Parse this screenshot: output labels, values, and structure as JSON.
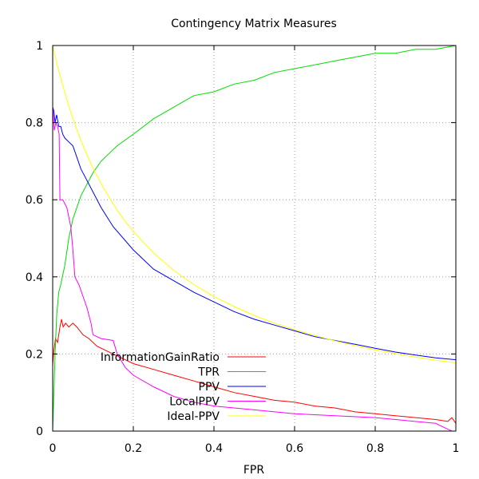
{
  "chart_data": {
    "type": "line",
    "title": "Contingency Matrix Measures",
    "xlabel": "FPR",
    "ylabel": "",
    "xlim": [
      0,
      1
    ],
    "ylim": [
      0,
      1
    ],
    "xticks": [
      0,
      0.2,
      0.4,
      0.6,
      0.8,
      1
    ],
    "xtick_labels": [
      "0",
      "0.2",
      "0.4",
      "0.6",
      "0.8",
      "1"
    ],
    "yticks": [
      0,
      0.2,
      0.4,
      0.6,
      0.8,
      1
    ],
    "ytick_labels": [
      "0",
      "0.2",
      "0.4",
      "0.6",
      "0.8",
      "1"
    ],
    "grid": true,
    "legend_position": "bottom-center",
    "series": [
      {
        "name": "InformationGainRatio",
        "color": "#ff0000",
        "points": [
          [
            0,
            0.17
          ],
          [
            0.003,
            0.21
          ],
          [
            0.007,
            0.24
          ],
          [
            0.012,
            0.23
          ],
          [
            0.018,
            0.27
          ],
          [
            0.022,
            0.29
          ],
          [
            0.026,
            0.27
          ],
          [
            0.032,
            0.28
          ],
          [
            0.04,
            0.27
          ],
          [
            0.05,
            0.28
          ],
          [
            0.06,
            0.27
          ],
          [
            0.075,
            0.25
          ],
          [
            0.09,
            0.24
          ],
          [
            0.11,
            0.22
          ],
          [
            0.13,
            0.21
          ],
          [
            0.15,
            0.2
          ],
          [
            0.17,
            0.19
          ],
          [
            0.2,
            0.175
          ],
          [
            0.25,
            0.16
          ],
          [
            0.3,
            0.145
          ],
          [
            0.35,
            0.13
          ],
          [
            0.4,
            0.115
          ],
          [
            0.45,
            0.1
          ],
          [
            0.5,
            0.09
          ],
          [
            0.55,
            0.08
          ],
          [
            0.6,
            0.075
          ],
          [
            0.65,
            0.065
          ],
          [
            0.7,
            0.06
          ],
          [
            0.75,
            0.05
          ],
          [
            0.8,
            0.045
          ],
          [
            0.85,
            0.04
          ],
          [
            0.9,
            0.035
          ],
          [
            0.95,
            0.03
          ],
          [
            0.98,
            0.025
          ],
          [
            0.99,
            0.035
          ],
          [
            1,
            0.02
          ]
        ]
      },
      {
        "name": "TPR",
        "color": "#00dd00",
        "points": [
          [
            0,
            0
          ],
          [
            0.003,
            0.1
          ],
          [
            0.006,
            0.2
          ],
          [
            0.01,
            0.3
          ],
          [
            0.015,
            0.36
          ],
          [
            0.02,
            0.38
          ],
          [
            0.03,
            0.43
          ],
          [
            0.04,
            0.5
          ],
          [
            0.05,
            0.55
          ],
          [
            0.06,
            0.58
          ],
          [
            0.07,
            0.61
          ],
          [
            0.08,
            0.63
          ],
          [
            0.1,
            0.67
          ],
          [
            0.12,
            0.7
          ],
          [
            0.14,
            0.72
          ],
          [
            0.16,
            0.74
          ],
          [
            0.2,
            0.77
          ],
          [
            0.25,
            0.81
          ],
          [
            0.3,
            0.84
          ],
          [
            0.35,
            0.87
          ],
          [
            0.4,
            0.88
          ],
          [
            0.45,
            0.9
          ],
          [
            0.5,
            0.91
          ],
          [
            0.55,
            0.93
          ],
          [
            0.6,
            0.94
          ],
          [
            0.65,
            0.95
          ],
          [
            0.7,
            0.96
          ],
          [
            0.75,
            0.97
          ],
          [
            0.8,
            0.98
          ],
          [
            0.85,
            0.98
          ],
          [
            0.9,
            0.99
          ],
          [
            0.95,
            0.99
          ],
          [
            1,
            1
          ]
        ]
      },
      {
        "name": "PPV",
        "color": "#0000ff",
        "points": [
          [
            0,
            0.84
          ],
          [
            0.003,
            0.83
          ],
          [
            0.006,
            0.8
          ],
          [
            0.01,
            0.82
          ],
          [
            0.015,
            0.79
          ],
          [
            0.02,
            0.79
          ],
          [
            0.025,
            0.77
          ],
          [
            0.03,
            0.76
          ],
          [
            0.04,
            0.75
          ],
          [
            0.05,
            0.74
          ],
          [
            0.06,
            0.71
          ],
          [
            0.07,
            0.68
          ],
          [
            0.08,
            0.66
          ],
          [
            0.1,
            0.62
          ],
          [
            0.12,
            0.58
          ],
          [
            0.15,
            0.53
          ],
          [
            0.2,
            0.47
          ],
          [
            0.25,
            0.42
          ],
          [
            0.3,
            0.39
          ],
          [
            0.35,
            0.36
          ],
          [
            0.4,
            0.335
          ],
          [
            0.45,
            0.31
          ],
          [
            0.5,
            0.29
          ],
          [
            0.55,
            0.275
          ],
          [
            0.6,
            0.26
          ],
          [
            0.65,
            0.245
          ],
          [
            0.7,
            0.235
          ],
          [
            0.75,
            0.225
          ],
          [
            0.8,
            0.215
          ],
          [
            0.85,
            0.205
          ],
          [
            0.9,
            0.197
          ],
          [
            0.95,
            0.19
          ],
          [
            1,
            0.185
          ]
        ]
      },
      {
        "name": "LocalPPV",
        "color": "#ff00ff",
        "points": [
          [
            0,
            0.84
          ],
          [
            0.004,
            0.78
          ],
          [
            0.008,
            0.8
          ],
          [
            0.012,
            0.79
          ],
          [
            0.016,
            0.77
          ],
          [
            0.018,
            0.6
          ],
          [
            0.025,
            0.6
          ],
          [
            0.035,
            0.58
          ],
          [
            0.045,
            0.53
          ],
          [
            0.05,
            0.47
          ],
          [
            0.055,
            0.4
          ],
          [
            0.065,
            0.38
          ],
          [
            0.075,
            0.35
          ],
          [
            0.085,
            0.32
          ],
          [
            0.095,
            0.28
          ],
          [
            0.1,
            0.25
          ],
          [
            0.12,
            0.24
          ],
          [
            0.15,
            0.235
          ],
          [
            0.16,
            0.2
          ],
          [
            0.18,
            0.165
          ],
          [
            0.2,
            0.145
          ],
          [
            0.25,
            0.115
          ],
          [
            0.3,
            0.09
          ],
          [
            0.35,
            0.075
          ],
          [
            0.4,
            0.065
          ],
          [
            0.5,
            0.055
          ],
          [
            0.6,
            0.045
          ],
          [
            0.7,
            0.04
          ],
          [
            0.8,
            0.035
          ],
          [
            0.9,
            0.025
          ],
          [
            0.95,
            0.02
          ],
          [
            0.97,
            0.01
          ],
          [
            0.98,
            0.005
          ],
          [
            0.99,
            0.0
          ]
        ]
      },
      {
        "name": "Ideal-PPV",
        "color": "#ffff00",
        "points": [
          [
            0,
            1
          ],
          [
            0.01,
            0.956
          ],
          [
            0.02,
            0.915
          ],
          [
            0.03,
            0.878
          ],
          [
            0.04,
            0.843
          ],
          [
            0.05,
            0.811
          ],
          [
            0.06,
            0.782
          ],
          [
            0.07,
            0.754
          ],
          [
            0.08,
            0.729
          ],
          [
            0.09,
            0.705
          ],
          [
            0.1,
            0.682
          ],
          [
            0.12,
            0.642
          ],
          [
            0.14,
            0.606
          ],
          [
            0.16,
            0.573
          ],
          [
            0.18,
            0.544
          ],
          [
            0.2,
            0.518
          ],
          [
            0.25,
            0.462
          ],
          [
            0.3,
            0.417
          ],
          [
            0.35,
            0.38
          ],
          [
            0.4,
            0.349
          ],
          [
            0.45,
            0.323
          ],
          [
            0.5,
            0.3
          ],
          [
            0.55,
            0.28
          ],
          [
            0.6,
            0.263
          ],
          [
            0.65,
            0.248
          ],
          [
            0.7,
            0.234
          ],
          [
            0.75,
            0.222
          ],
          [
            0.8,
            0.211
          ],
          [
            0.85,
            0.201
          ],
          [
            0.9,
            0.192
          ],
          [
            0.95,
            0.184
          ],
          [
            1,
            0.177
          ]
        ]
      }
    ]
  }
}
